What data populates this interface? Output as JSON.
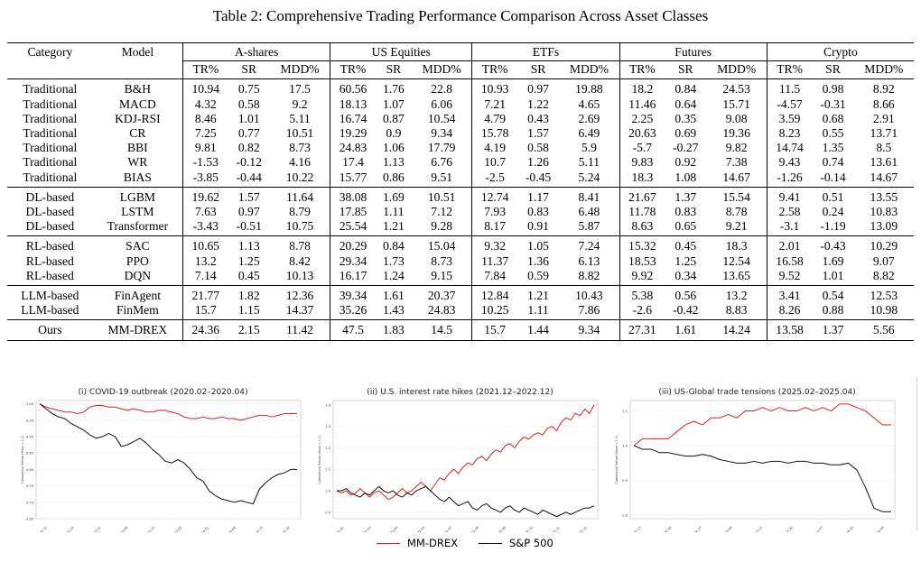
{
  "caption": "Table 2: Comprehensive Trading Performance Comparison Across Asset Classes",
  "table": {
    "col_category": "Category",
    "col_model": "Model",
    "groups": [
      "A-shares",
      "US Equities",
      "ETFs",
      "Futures",
      "Crypto"
    ],
    "metrics": [
      "TR%",
      "SR",
      "MDD%"
    ],
    "rows": [
      {
        "category": "Traditional",
        "model": "B&H",
        "values": [
          "10.94",
          "0.75",
          "17.5",
          "60.56",
          "1.76",
          "22.8",
          "10.93",
          "0.97",
          "19.88",
          "18.2",
          "0.84",
          "24.53",
          "11.5",
          "0.98",
          "8.92"
        ],
        "bold": [
          2,
          3,
          8,
          11
        ],
        "section_start": true
      },
      {
        "category": "Traditional",
        "model": "MACD",
        "values": [
          "4.32",
          "0.58",
          "9.2",
          "18.13",
          "1.07",
          "6.06",
          "7.21",
          "1.22",
          "4.65",
          "11.46",
          "0.64",
          "15.71",
          "-4.57",
          "-0.31",
          "8.66"
        ],
        "bold": [
          5,
          12
        ]
      },
      {
        "category": "Traditional",
        "model": "KDJ-RSI",
        "values": [
          "8.46",
          "1.01",
          "5.11",
          "16.74",
          "0.87",
          "10.54",
          "4.79",
          "0.43",
          "2.69",
          "2.25",
          "0.35",
          "9.08",
          "3.59",
          "0.68",
          "2.91"
        ],
        "bold": [
          8,
          14
        ]
      },
      {
        "category": "Traditional",
        "model": "CR",
        "values": [
          "7.25",
          "0.77",
          "10.51",
          "19.29",
          "0.9",
          "9.34",
          "15.78",
          "1.57",
          "6.49",
          "20.63",
          "0.69",
          "19.36",
          "8.23",
          "0.55",
          "13.71"
        ],
        "bold": [
          7
        ]
      },
      {
        "category": "Traditional",
        "model": "BBI",
        "values": [
          "9.81",
          "0.82",
          "8.73",
          "24.83",
          "1.06",
          "17.79",
          "4.19",
          "0.58",
          "5.9",
          "-5.7",
          "-0.27",
          "9.82",
          "14.74",
          "1.35",
          "8.5"
        ],
        "bold": [
          9
        ]
      },
      {
        "category": "Traditional",
        "model": "WR",
        "values": [
          "-1.53",
          "-0.12",
          "4.16",
          "17.4",
          "1.13",
          "6.76",
          "10.7",
          "1.26",
          "5.11",
          "9.83",
          "0.92",
          "7.38",
          "9.43",
          "0.74",
          "13.61"
        ],
        "bold": [
          2,
          11
        ]
      },
      {
        "category": "Traditional",
        "model": "BIAS",
        "values": [
          "-3.85",
          "-0.44",
          "10.22",
          "15.77",
          "0.86",
          "9.51",
          "-2.5",
          "-0.45",
          "5.24",
          "18.3",
          "1.08",
          "14.67",
          "-1.26",
          "-0.14",
          "14.67"
        ],
        "bold": [
          0,
          3,
          6,
          7,
          14
        ]
      },
      {
        "category": "DL-based",
        "model": "LGBM",
        "values": [
          "19.62",
          "1.57",
          "11.64",
          "38.08",
          "1.69",
          "10.51",
          "12.74",
          "1.17",
          "8.41",
          "21.67",
          "1.37",
          "15.54",
          "9.41",
          "0.51",
          "13.55"
        ],
        "bold": [],
        "section_start": true
      },
      {
        "category": "DL-based",
        "model": "LSTM",
        "values": [
          "7.63",
          "0.97",
          "8.79",
          "17.85",
          "1.11",
          "7.12",
          "7.93",
          "0.83",
          "6.48",
          "11.78",
          "0.83",
          "8.78",
          "2.58",
          "0.24",
          "10.83"
        ],
        "bold": []
      },
      {
        "category": "DL-based",
        "model": "Transformer",
        "values": [
          "-3.43",
          "-0.51",
          "10.75",
          "25.54",
          "1.21",
          "9.28",
          "8.17",
          "0.91",
          "5.87",
          "8.63",
          "0.65",
          "9.21",
          "-3.1",
          "-1.19",
          "13.09"
        ],
        "bold": [
          1,
          13
        ]
      },
      {
        "category": "RL-based",
        "model": "SAC",
        "values": [
          "10.65",
          "1.13",
          "8.78",
          "20.29",
          "0.84",
          "15.04",
          "9.32",
          "1.05",
          "7.24",
          "15.32",
          "0.45",
          "18.3",
          "2.01",
          "-0.43",
          "10.29"
        ],
        "bold": [
          4
        ],
        "section_start": true
      },
      {
        "category": "RL-based",
        "model": "PPO",
        "values": [
          "13.2",
          "1.25",
          "8.42",
          "29.34",
          "1.73",
          "8.73",
          "11.37",
          "1.36",
          "6.13",
          "18.53",
          "1.25",
          "12.54",
          "16.58",
          "1.69",
          "9.07"
        ],
        "bold": [
          12,
          13
        ]
      },
      {
        "category": "RL-based",
        "model": "DQN",
        "values": [
          "7.14",
          "0.45",
          "10.13",
          "16.17",
          "1.24",
          "9.15",
          "7.84",
          "0.59",
          "8.82",
          "9.92",
          "0.34",
          "13.65",
          "9.52",
          "1.01",
          "8.82"
        ],
        "bold": []
      },
      {
        "category": "LLM-based",
        "model": "FinAgent",
        "values": [
          "21.77",
          "1.82",
          "12.36",
          "39.34",
          "1.61",
          "20.37",
          "12.84",
          "1.21",
          "10.43",
          "5.38",
          "0.56",
          "13.2",
          "3.41",
          "0.54",
          "12.53"
        ],
        "bold": [],
        "section_start": true
      },
      {
        "category": "LLM-based",
        "model": "FinMem",
        "values": [
          "15.7",
          "1.15",
          "14.37",
          "35.26",
          "1.43",
          "24.83",
          "10.25",
          "1.11",
          "7.86",
          "-2.6",
          "-0.42",
          "8.83",
          "8.26",
          "0.88",
          "10.98"
        ],
        "bold": [
          5,
          10
        ]
      },
      {
        "category": "Ours",
        "model": "MM-DREX",
        "model_bold": true,
        "values": [
          "24.36",
          "2.15",
          "11.42",
          "47.5",
          "1.83",
          "14.5",
          "15.7",
          "1.44",
          "9.34",
          "27.31",
          "1.61",
          "14.24",
          "13.58",
          "1.37",
          "5.56"
        ],
        "bold": [
          0,
          1,
          4,
          6,
          9,
          10
        ],
        "section_start": true
      }
    ]
  },
  "legend": {
    "ours": "MM-DREX",
    "benchmark": "S&P 500"
  },
  "colors": {
    "ours": "#e0201b",
    "benchmark": "#111111"
  },
  "chart_data": [
    {
      "type": "line",
      "title": "(i) COVID-19 outbreak (2020.02–2020.04)",
      "ylabel": "Cumulative Return (Base = 1.0)",
      "ylim": [
        0.65,
        1.01
      ],
      "yticks": [
        "0.65",
        "0.70",
        "0.75",
        "0.80",
        "0.85",
        "0.90",
        "0.95",
        "1.00"
      ],
      "xticks": [
        "2020-02-12",
        "2020-02-19",
        "2020-03-01",
        "2020-03-08",
        "2020-03-15",
        "2020-03-22",
        "2020-04-01",
        "2020-04-08",
        "2020-04-15",
        "2020-04-22"
      ],
      "series": [
        {
          "name": "MM-DREX",
          "values": [
            1.0,
            0.99,
            0.985,
            0.98,
            0.975,
            0.975,
            0.97,
            0.975,
            0.99,
            0.995,
            0.995,
            0.99,
            0.99,
            0.985,
            0.98,
            0.985,
            0.98,
            0.975,
            0.975,
            0.98,
            0.98,
            0.975,
            0.97,
            0.96,
            0.955,
            0.955,
            0.96,
            0.955,
            0.955,
            0.96,
            0.955,
            0.955,
            0.95,
            0.955,
            0.96,
            0.965,
            0.965,
            0.96,
            0.965,
            0.97,
            0.97,
            0.97
          ]
        },
        {
          "name": "S&P 500",
          "values": [
            1.0,
            0.985,
            0.97,
            0.96,
            0.955,
            0.94,
            0.93,
            0.92,
            0.905,
            0.895,
            0.9,
            0.91,
            0.9,
            0.87,
            0.875,
            0.885,
            0.895,
            0.88,
            0.86,
            0.845,
            0.825,
            0.82,
            0.83,
            0.82,
            0.8,
            0.775,
            0.765,
            0.735,
            0.72,
            0.71,
            0.705,
            0.7,
            0.705,
            0.7,
            0.695,
            0.74,
            0.76,
            0.775,
            0.785,
            0.79,
            0.8,
            0.8
          ]
        }
      ]
    },
    {
      "type": "line",
      "title": "(ii) U.S. interest rate hikes (2021.12–2022.12)",
      "ylabel": "Cumulative Return (Base = 1.0)",
      "ylim": [
        0.87,
        1.42
      ],
      "yticks": [
        "0.9",
        "1.0",
        "1.1",
        "1.2",
        "1.3",
        "1.4"
      ],
      "xticks": [
        "2022-01",
        "2022-03",
        "2022-04",
        "2022-05",
        "2022-07",
        "2022-08",
        "2022-09",
        "2022-10",
        "2022-11",
        "2022-12"
      ],
      "series": [
        {
          "name": "MM-DREX",
          "values": [
            1.0,
            0.99,
            1.0,
            0.98,
            0.99,
            1.01,
            0.99,
            0.97,
            0.99,
            1.0,
            0.98,
            0.96,
            0.97,
            0.99,
            1.01,
            0.99,
            1.0,
            1.02,
            1.04,
            1.02,
            1.0,
            1.03,
            1.06,
            1.05,
            1.08,
            1.1,
            1.08,
            1.11,
            1.13,
            1.12,
            1.15,
            1.16,
            1.14,
            1.17,
            1.19,
            1.18,
            1.21,
            1.22,
            1.2,
            1.23,
            1.25,
            1.24,
            1.26,
            1.27,
            1.26,
            1.29,
            1.3,
            1.28,
            1.32,
            1.34,
            1.33,
            1.36,
            1.35,
            1.38,
            1.36,
            1.4
          ]
        },
        {
          "name": "S&P 500",
          "values": [
            1.0,
            1.0,
            1.01,
            0.99,
            0.98,
            0.97,
            0.99,
            0.98,
            1.0,
            1.02,
            1.0,
            0.99,
            1.0,
            0.98,
            0.97,
            0.99,
            0.98,
            1.0,
            1.01,
            1.02,
            1.0,
            0.98,
            0.96,
            0.95,
            0.97,
            0.95,
            0.93,
            0.94,
            0.95,
            0.92,
            0.91,
            0.93,
            0.94,
            0.92,
            0.91,
            0.9,
            0.92,
            0.93,
            0.91,
            0.9,
            0.92,
            0.91,
            0.9,
            0.89,
            0.91,
            0.9,
            0.89,
            0.88,
            0.89,
            0.9,
            0.89,
            0.9,
            0.91,
            0.92,
            0.92,
            0.93
          ]
        }
      ]
    },
    {
      "type": "line",
      "title": "(iii) US-Global trade tensions (2025.02–2025.04)",
      "ylabel": "Cumulative Return (Base = 1.0)",
      "ylim": [
        0.79,
        1.13
      ],
      "yticks": [
        "0.8",
        "0.9",
        "1.0",
        "1.1"
      ],
      "xticks": [
        "2025-02-13",
        "2025-02-20",
        "2025-02-27",
        "2025-03-06",
        "2025-03-13",
        "2025-03-20",
        "2025-03-27",
        "2025-04-03",
        "2025-04-08"
      ],
      "series": [
        {
          "name": "MM-DREX",
          "values": [
            1.0,
            1.02,
            1.02,
            1.02,
            1.02,
            1.04,
            1.06,
            1.07,
            1.06,
            1.08,
            1.08,
            1.09,
            1.08,
            1.1,
            1.1,
            1.11,
            1.1,
            1.11,
            1.1,
            1.1,
            1.11,
            1.1,
            1.11,
            1.1,
            1.12,
            1.12,
            1.11,
            1.1,
            1.08,
            1.06,
            1.06
          ]
        },
        {
          "name": "S&P 500",
          "values": [
            1.0,
            0.99,
            0.99,
            0.98,
            0.98,
            0.975,
            0.97,
            0.97,
            0.975,
            0.97,
            0.96,
            0.955,
            0.95,
            0.95,
            0.955,
            0.95,
            0.955,
            0.955,
            0.95,
            0.955,
            0.955,
            0.95,
            0.95,
            0.945,
            0.945,
            0.95,
            0.93,
            0.88,
            0.82,
            0.81,
            0.81
          ]
        }
      ]
    }
  ]
}
